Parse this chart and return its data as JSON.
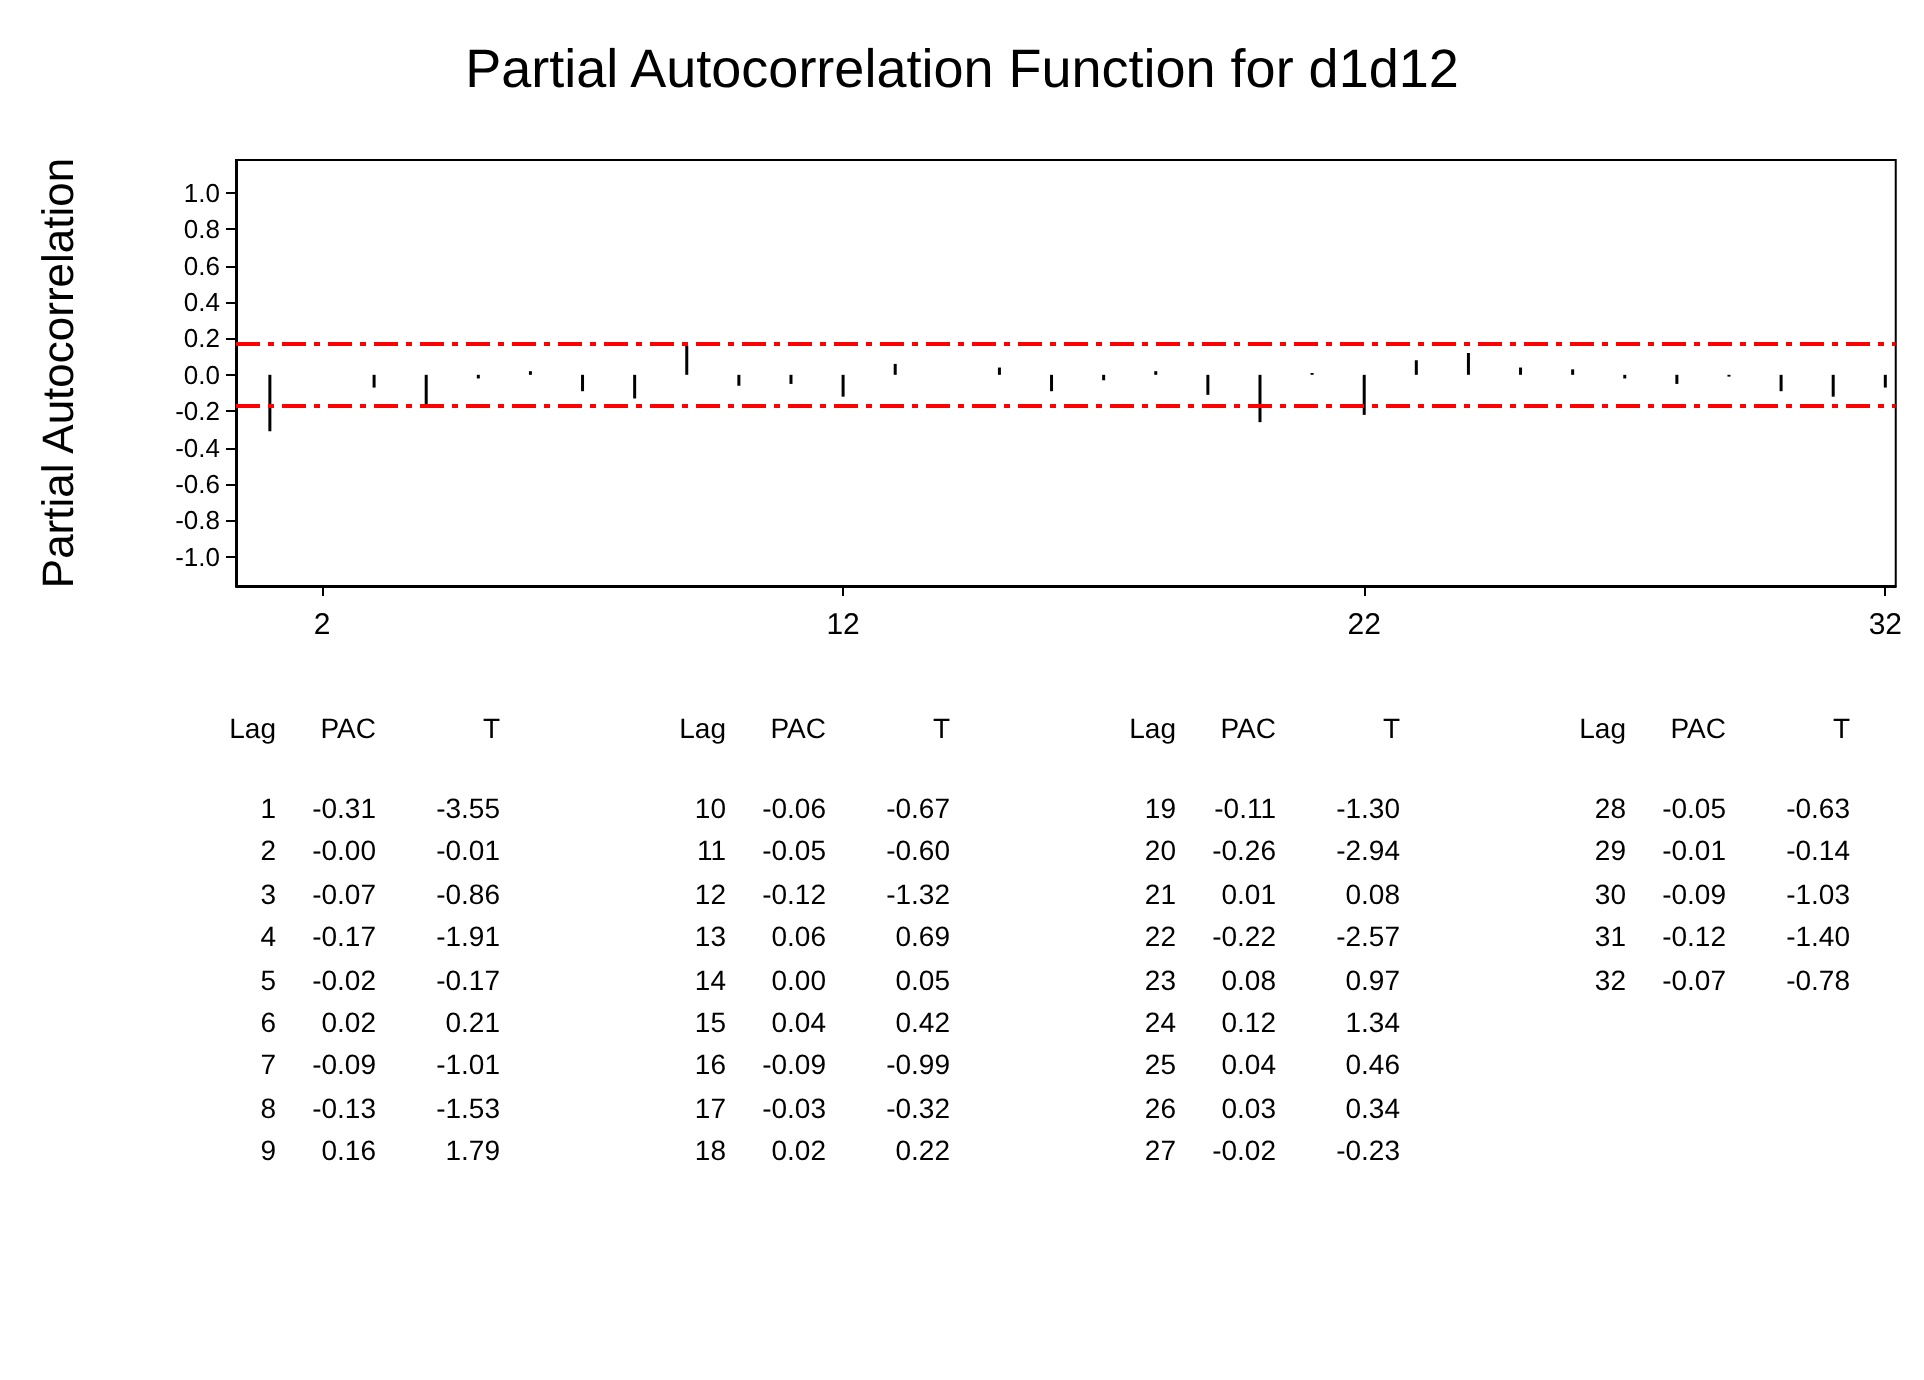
{
  "chart_data": {
    "type": "bar",
    "title": "Partial Autocorrelation Function for d1d12",
    "ylabel": "Partial Autocorrelation",
    "x": [
      1,
      2,
      3,
      4,
      5,
      6,
      7,
      8,
      9,
      10,
      11,
      12,
      13,
      14,
      15,
      16,
      17,
      18,
      19,
      20,
      21,
      22,
      23,
      24,
      25,
      26,
      27,
      28,
      29,
      30,
      31,
      32
    ],
    "values": [
      -0.31,
      0,
      -0.07,
      -0.17,
      -0.02,
      0.02,
      -0.09,
      -0.13,
      0.16,
      -0.06,
      -0.05,
      -0.12,
      0.06,
      0,
      0.04,
      -0.09,
      -0.03,
      0.02,
      -0.11,
      -0.26,
      0.01,
      -0.22,
      0.08,
      0.12,
      0.04,
      0.03,
      -0.02,
      -0.05,
      -0.01,
      -0.09,
      -0.12,
      -0.07
    ],
    "annotations": [
      "Lag",
      "PAC",
      "T",
      "1",
      "-0.31",
      "-3.55",
      "2",
      "-0.00",
      "-0.01",
      "3",
      "-0.07",
      "-0.86",
      "4",
      "-0.17",
      "-1.91",
      "5",
      "-0.02",
      "-0.17",
      "6",
      "0.02",
      "0.21",
      "7",
      "-0.09",
      "-1.01",
      "8",
      "-0.13",
      "-1.53",
      "9",
      "0.16",
      "1.79",
      "10",
      "-0.06",
      "-0.67",
      "11",
      "-0.05",
      "-0.60",
      "12",
      "-0.12",
      "-1.32",
      "13",
      "0.06",
      "0.69",
      "14",
      "0.00",
      "0.05",
      "15",
      "0.04",
      "0.42",
      "16",
      "-0.09",
      "-0.99",
      "17",
      "-0.03",
      "-0.32",
      "18",
      "0.02",
      "0.22",
      "19",
      "-0.11",
      "-1.30",
      "20",
      "-0.26",
      "-2.94",
      "21",
      "0.01",
      "0.08",
      "22",
      "-0.22",
      "-2.57",
      "23",
      "0.08",
      "0.97",
      "24",
      "0.12",
      "1.34",
      "25",
      "0.04",
      "0.46",
      "26",
      "0.03",
      "0.34",
      "27",
      "-0.02",
      "-0.23",
      "28",
      "-0.05",
      "-0.63",
      "29",
      "-0.01",
      "-0.14",
      "30",
      "-0.09",
      "-1.03",
      "31",
      "-0.12",
      "-1.40",
      "32",
      "-0.07",
      "-0.78"
    ],
    "color": "#000000",
    "xlim": [
      0.35,
      32.2
    ],
    "xticks": [
      2,
      12,
      22,
      32
    ],
    "ylim": [
      -1.16,
      1.18
    ],
    "yticks": [
      {
        "value": -1,
        "label": "-1.0"
      },
      -0.8,
      -0.6,
      -0.4,
      -0.2,
      {
        "value": 0,
        "label": "0.0"
      },
      0.2,
      0.4,
      0.6,
      0.8,
      {
        "value": 1,
        "label": "1.0"
      }
    ],
    "ref_lines": [
      {
        "axis": "y",
        "value": 0.17,
        "color": "#ff0000",
        "line_style": "dashdot"
      },
      {
        "axis": "y",
        "value": -0.17,
        "color": "#ff0000",
        "line_style": "dashdot"
      }
    ]
  }
}
